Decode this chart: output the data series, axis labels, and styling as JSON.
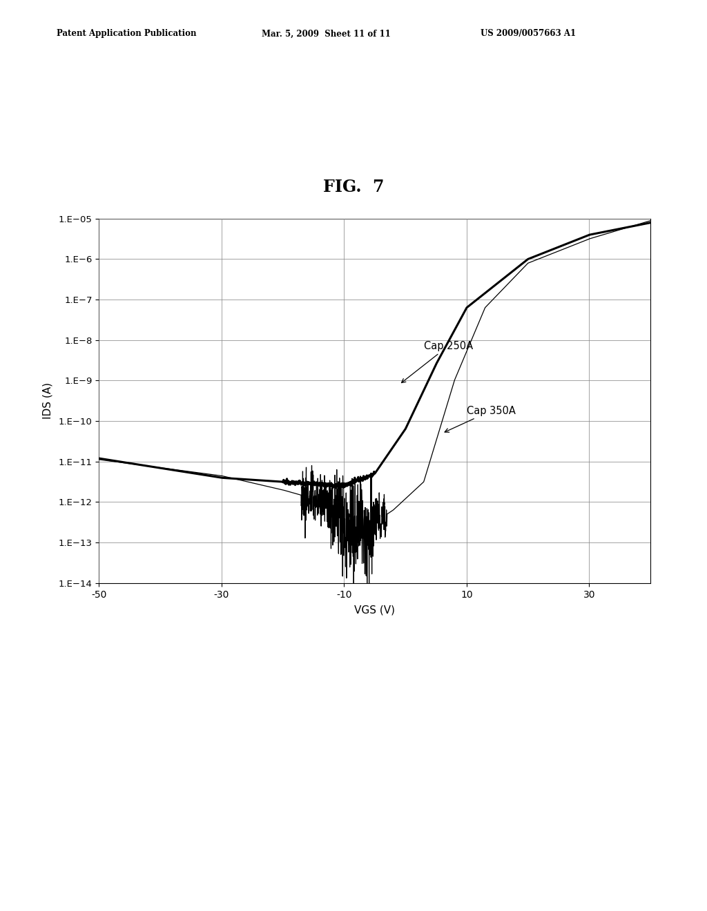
{
  "title": "FIG.  7",
  "xlabel": "VGS (V)",
  "ylabel": "IDS (A)",
  "xlim": [
    -50,
    40
  ],
  "ylim_log": [
    -14,
    -5
  ],
  "xticks": [
    -50,
    -30,
    -10,
    10,
    30
  ],
  "header_left": "Patent Application Publication",
  "header_mid": "Mar. 5, 2009  Sheet 11 of 11",
  "header_right": "US 2009/0057663 A1",
  "label_cap250": "Cap 250A",
  "label_cap350": "Cap 350A",
  "background_color": "#ffffff",
  "line_color": "#000000",
  "ytick_labels": [
    "1.E−14",
    "1.E−13",
    "1.E−12",
    "1.E−11",
    "1.E−10",
    "1.E−9",
    "1.E−8",
    "1.E−7",
    "1.E−6",
    "1.E−05"
  ]
}
